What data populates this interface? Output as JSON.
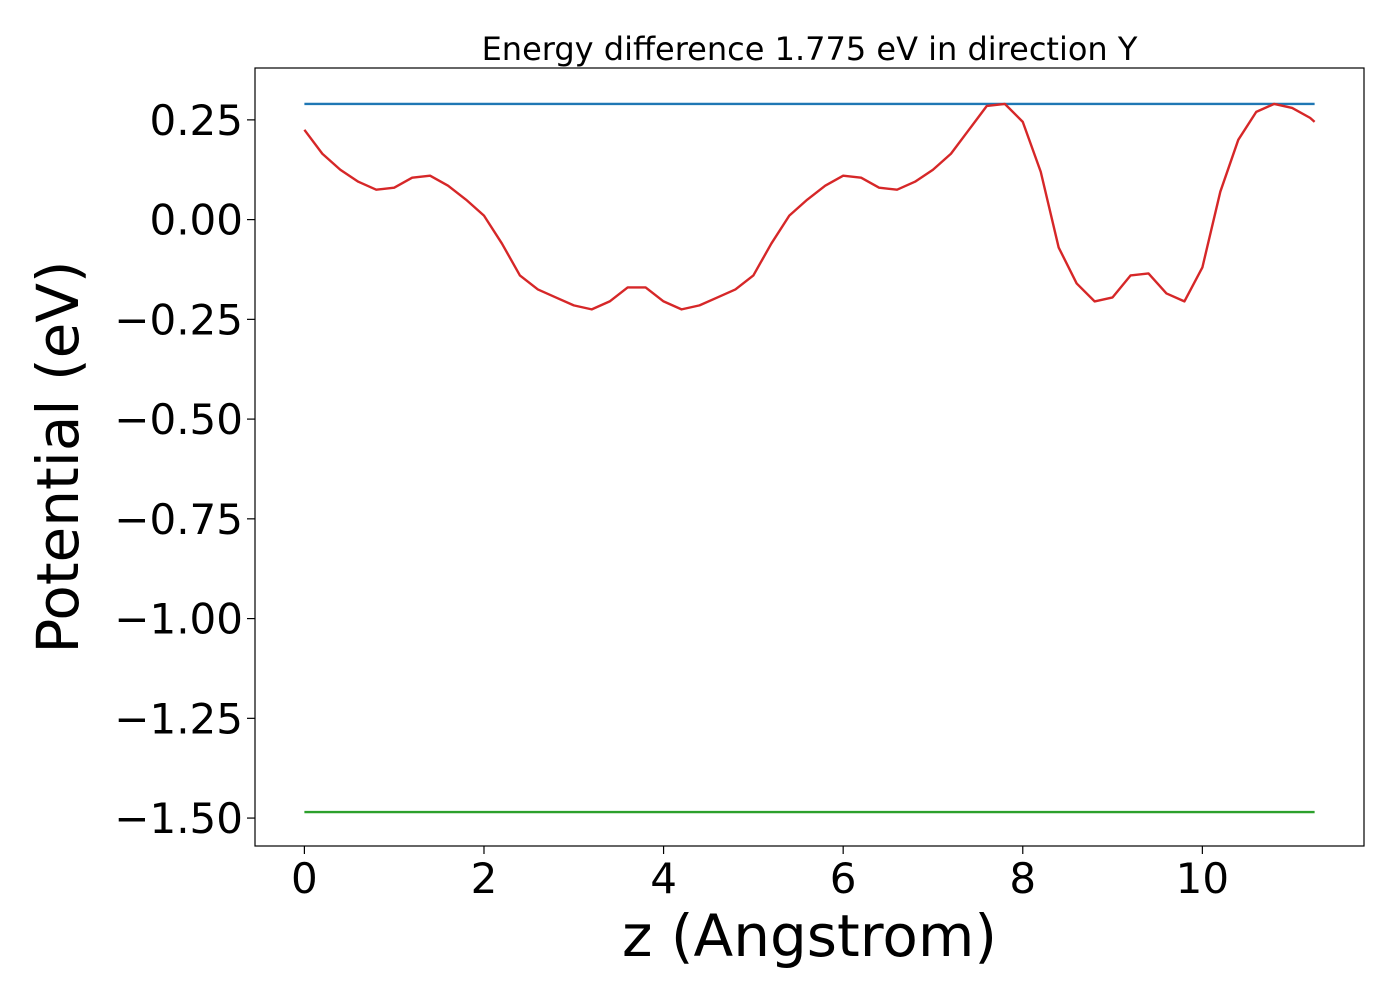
{
  "chart_data": {
    "type": "line",
    "title": "Energy difference 1.775 eV in direction Y",
    "xlabel": "z (Angstrom)",
    "ylabel": "Potential (eV)",
    "xlim": [
      -0.55,
      11.8
    ],
    "ylim": [
      -1.57,
      0.38
    ],
    "xticks": [
      0,
      2,
      4,
      6,
      8,
      10
    ],
    "xtick_labels": [
      "0",
      "2",
      "4",
      "6",
      "8",
      "10"
    ],
    "yticks": [
      0.25,
      0.0,
      -0.25,
      -0.5,
      -0.75,
      -1.0,
      -1.25,
      -1.5
    ],
    "ytick_labels": [
      "0.25",
      "0.00",
      "−0.25",
      "−0.50",
      "−0.75",
      "−1.00",
      "−1.25",
      "−1.50"
    ],
    "grid": false,
    "series": [
      {
        "color": "#d62728",
        "x": [
          0.0,
          0.2,
          0.4,
          0.6,
          0.8,
          1.0,
          1.2,
          1.4,
          1.6,
          1.8,
          2.0,
          2.2,
          2.4,
          2.6,
          2.8,
          3.0,
          3.2,
          3.4,
          3.6,
          3.8,
          4.0,
          4.2,
          4.4,
          4.6,
          4.8,
          5.0,
          5.2,
          5.4,
          5.6,
          5.8,
          6.0,
          6.2,
          6.4,
          6.6,
          6.8,
          7.0,
          7.2,
          7.4,
          7.6,
          7.8,
          8.0,
          8.2,
          8.4,
          8.6,
          8.8,
          9.0,
          9.2,
          9.4,
          9.6,
          9.8,
          10.0,
          10.2,
          10.4,
          10.6,
          10.8,
          11.0,
          11.2,
          11.25
        ],
        "y": [
          0.225,
          0.165,
          0.125,
          0.095,
          0.075,
          0.08,
          0.105,
          0.11,
          0.085,
          0.05,
          0.01,
          -0.06,
          -0.14,
          -0.175,
          -0.195,
          -0.215,
          -0.225,
          -0.205,
          -0.17,
          -0.17,
          -0.205,
          -0.225,
          -0.215,
          -0.195,
          -0.175,
          -0.14,
          -0.06,
          0.01,
          0.05,
          0.085,
          0.11,
          0.105,
          0.08,
          0.075,
          0.095,
          0.125,
          0.165,
          0.225,
          0.285,
          0.29,
          0.245,
          0.12,
          -0.07,
          -0.16,
          -0.205,
          -0.195,
          -0.14,
          -0.135,
          -0.185,
          -0.205,
          -0.12,
          0.07,
          0.2,
          0.27,
          0.29,
          0.28,
          0.255,
          0.245
        ]
      },
      {
        "color": "#1f77b4",
        "x": [
          0.0,
          11.25
        ],
        "y": [
          0.29,
          0.29
        ]
      },
      {
        "color": "#2ca02c",
        "x": [
          0.0,
          11.25
        ],
        "y": [
          -1.485,
          -1.485
        ]
      }
    ]
  }
}
